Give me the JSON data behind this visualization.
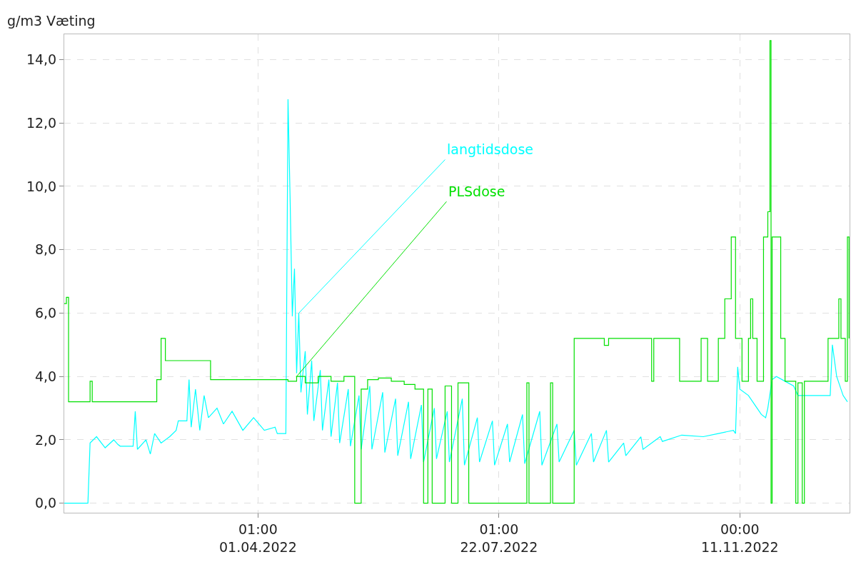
{
  "chart_data": {
    "type": "line",
    "ylabel": "g/m3 Væting",
    "xlim": [
      "2022-01-01",
      "2023-01-01"
    ],
    "ylim": [
      -0.3,
      14.8
    ],
    "xticks": [
      {
        "value": "2022-04-01T01:00",
        "label": "01:00\n01.04.2022"
      },
      {
        "value": "2022-07-22T01:00",
        "label": "01:00\n22.07.2022"
      },
      {
        "value": "2022-11-11T00:00",
        "label": "00:00\n11.11.2022"
      }
    ],
    "yticks": [
      {
        "value": 0,
        "label": "0,0"
      },
      {
        "value": 2,
        "label": "2,0"
      },
      {
        "value": 4,
        "label": "4,0"
      },
      {
        "value": 6,
        "label": "6,0"
      },
      {
        "value": 8,
        "label": "8,0"
      },
      {
        "value": 10,
        "label": "10,0"
      },
      {
        "value": 12,
        "label": "12,0"
      },
      {
        "value": 14,
        "label": "14,0"
      }
    ],
    "grid": true,
    "marker": "none",
    "line_style": "solid",
    "series": [
      {
        "name": "langtidsdose",
        "color": "#00ffff",
        "x": [
          "2022-01-01",
          "2022-01-12",
          "2022-01-13",
          "2022-01-16",
          "2022-01-20",
          "2022-01-24",
          "2022-01-26",
          "2022-01-27",
          "2022-02-02",
          "2022-02-03",
          "2022-02-04",
          "2022-02-08",
          "2022-02-10",
          "2022-02-12",
          "2022-02-15",
          "2022-02-19",
          "2022-02-22",
          "2022-02-23",
          "2022-02-27",
          "2022-02-28",
          "2022-03-01",
          "2022-03-03",
          "2022-03-05",
          "2022-03-07",
          "2022-03-09",
          "2022-03-13",
          "2022-03-16",
          "2022-03-20",
          "2022-03-25",
          "2022-03-30",
          "2022-04-04",
          "2022-04-09",
          "2022-04-10",
          "2022-04-14",
          "2022-04-15",
          "2022-04-16",
          "2022-04-17",
          "2022-04-18",
          "2022-04-19",
          "2022-04-20",
          "2022-04-21",
          "2022-04-23",
          "2022-04-24",
          "2022-04-26",
          "2022-04-27",
          "2022-04-30",
          "2022-05-01",
          "2022-05-04",
          "2022-05-05",
          "2022-05-08",
          "2022-05-09",
          "2022-05-13",
          "2022-05-14",
          "2022-05-18",
          "2022-05-19",
          "2022-05-23",
          "2022-05-24",
          "2022-05-29",
          "2022-05-30",
          "2022-06-04",
          "2022-06-05",
          "2022-06-10",
          "2022-06-11",
          "2022-06-16",
          "2022-06-17",
          "2022-06-22",
          "2022-06-23",
          "2022-06-28",
          "2022-06-29",
          "2022-07-05",
          "2022-07-06",
          "2022-07-12",
          "2022-07-13",
          "2022-07-19",
          "2022-07-20",
          "2022-07-26",
          "2022-07-27",
          "2022-08-02",
          "2022-08-03",
          "2022-08-10",
          "2022-08-11",
          "2022-08-18",
          "2022-08-19",
          "2022-08-26",
          "2022-08-27",
          "2022-09-03",
          "2022-09-04",
          "2022-09-10",
          "2022-09-11",
          "2022-09-18",
          "2022-09-19",
          "2022-09-26",
          "2022-09-27",
          "2022-10-05",
          "2022-10-06",
          "2022-10-15",
          "2022-10-25",
          "2022-11-01",
          "2022-11-08",
          "2022-11-09",
          "2022-11-10",
          "2022-11-11",
          "2022-11-15",
          "2022-11-18",
          "2022-11-21",
          "2022-11-23",
          "2022-11-24",
          "2022-11-26",
          "2022-11-28",
          "2022-12-02",
          "2022-12-06",
          "2022-12-08",
          "2022-12-23",
          "2022-12-24",
          "2022-12-26",
          "2022-12-29",
          "2022-12-31"
        ],
        "values": [
          0,
          0,
          1.9,
          2.1,
          1.75,
          2.0,
          1.85,
          1.8,
          1.8,
          2.9,
          1.7,
          2.0,
          1.55,
          2.2,
          1.9,
          2.1,
          2.3,
          2.6,
          2.6,
          3.9,
          2.4,
          3.6,
          2.3,
          3.4,
          2.7,
          3.0,
          2.5,
          2.9,
          2.3,
          2.7,
          2.3,
          2.4,
          2.2,
          2.2,
          12.75,
          9.5,
          5.9,
          7.4,
          4.1,
          6.0,
          3.5,
          4.8,
          2.8,
          4.5,
          2.6,
          4.2,
          2.3,
          3.9,
          2.1,
          3.8,
          1.9,
          3.6,
          1.8,
          3.4,
          1.7,
          3.7,
          1.7,
          3.5,
          1.6,
          3.3,
          1.5,
          3.2,
          1.4,
          3.1,
          1.3,
          3.0,
          1.4,
          2.9,
          1.3,
          3.3,
          1.2,
          2.7,
          1.3,
          2.6,
          1.2,
          2.5,
          1.3,
          2.8,
          1.25,
          2.9,
          1.2,
          2.5,
          1.3,
          2.3,
          1.2,
          2.2,
          1.3,
          2.3,
          1.3,
          1.9,
          1.5,
          2.1,
          1.7,
          2.1,
          1.95,
          2.15,
          2.1,
          2.2,
          2.3,
          2.2,
          4.3,
          3.6,
          3.4,
          3.1,
          2.8,
          2.7,
          3.0,
          3.9,
          4.0,
          3.85,
          3.7,
          3.4,
          3.4,
          5.0,
          4.0,
          3.4,
          3.2
        ]
      },
      {
        "name": "PLSdose",
        "type": "step",
        "color": "#00e000",
        "x": [
          "2022-01-01",
          "2022-01-02",
          "2022-01-03",
          "2022-01-13",
          "2022-01-14",
          "2022-02-13",
          "2022-02-15",
          "2022-02-17",
          "2022-03-10",
          "2022-04-15",
          "2022-04-19",
          "2022-04-23",
          "2022-04-29",
          "2022-05-05",
          "2022-05-11",
          "2022-05-16",
          "2022-05-19",
          "2022-05-22",
          "2022-05-27",
          "2022-06-02",
          "2022-06-08",
          "2022-06-13",
          "2022-06-17",
          "2022-06-19",
          "2022-06-21",
          "2022-06-27",
          "2022-06-30",
          "2022-07-03",
          "2022-07-08",
          "2022-08-04",
          "2022-08-05",
          "2022-08-15",
          "2022-08-16",
          "2022-08-26",
          "2022-09-09",
          "2022-09-11",
          "2022-10-01",
          "2022-10-02",
          "2022-10-14",
          "2022-10-24",
          "2022-10-27",
          "2022-11-01",
          "2022-11-04",
          "2022-11-07",
          "2022-11-09",
          "2022-11-12",
          "2022-11-15",
          "2022-11-16",
          "2022-11-17",
          "2022-11-19",
          "2022-11-22",
          "2022-11-24",
          "2022-11-25T00:00",
          "2022-11-25T12:00",
          "2022-11-26",
          "2022-11-30",
          "2022-12-02",
          "2022-12-07",
          "2022-12-08",
          "2022-12-10",
          "2022-12-11",
          "2022-12-22",
          "2022-12-27",
          "2022-12-28",
          "2022-12-30",
          "2022-12-31",
          "2022-12-31T18:00"
        ],
        "values": [
          6.3,
          6.5,
          3.2,
          3.85,
          3.2,
          3.9,
          5.2,
          4.5,
          3.9,
          3.85,
          4.0,
          3.8,
          4.0,
          3.85,
          4.0,
          0,
          3.6,
          3.9,
          3.95,
          3.85,
          3.75,
          3.6,
          0,
          3.6,
          0,
          3.7,
          0,
          3.8,
          0,
          3.8,
          0,
          3.8,
          0,
          5.2,
          4.98,
          5.2,
          3.85,
          5.2,
          3.85,
          5.2,
          3.85,
          5.2,
          6.45,
          8.4,
          5.2,
          3.85,
          5.2,
          6.45,
          5.2,
          3.85,
          8.4,
          9.2,
          14.6,
          0,
          8.4,
          5.2,
          3.85,
          0,
          3.8,
          0,
          3.85,
          5.2,
          6.45,
          5.2,
          3.85,
          8.4,
          5.2
        ]
      }
    ]
  }
}
